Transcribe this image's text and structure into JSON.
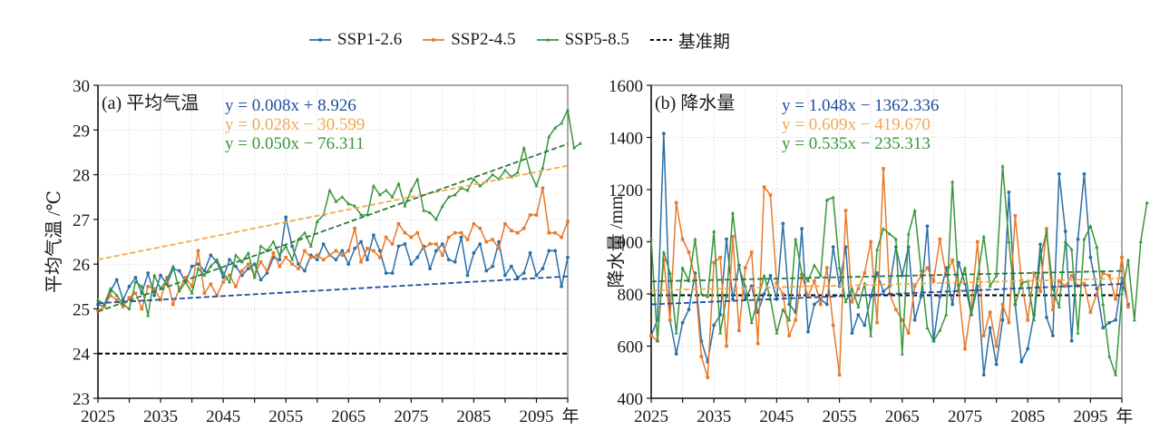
{
  "legend": {
    "items": [
      {
        "label": "SSP1-2.6",
        "color": "#2a6fa8",
        "marker": "circle"
      },
      {
        "label": "SSP2-4.5",
        "color": "#e87a2a",
        "marker": "square"
      },
      {
        "label": "SSP5-8.5",
        "color": "#38963a",
        "marker": "triangle"
      },
      {
        "label": "基准期",
        "color": "#000000",
        "marker": "dashed"
      }
    ]
  },
  "chart_data": [
    {
      "type": "line",
      "title": "(a) 平均气温",
      "xlabel": "年",
      "ylabel": "平均气温 /℃",
      "xlim": [
        2025,
        2100
      ],
      "ylim": [
        23,
        30
      ],
      "xticks": [
        2025,
        2035,
        2045,
        2055,
        2065,
        2075,
        2085,
        2095
      ],
      "xtick_labels": [
        "2025",
        "2035",
        "2045",
        "2055",
        "2065",
        "2075",
        "2085",
        "2095"
      ],
      "yticks": [
        23,
        24,
        25,
        26,
        27,
        28,
        29,
        30
      ],
      "ytick_labels": [
        "23",
        "24",
        "25",
        "26",
        "27",
        "28",
        "29",
        "30"
      ],
      "grid": true,
      "baseline": {
        "name": "基准期",
        "value": 24.0,
        "color": "#000000"
      },
      "equations": [
        {
          "text": "y = 0.008x + 8.926",
          "color": "#1f4e9c"
        },
        {
          "text": "y = 0.028x − 30.599",
          "color": "#f0a94e"
        },
        {
          "text": "y = 0.050x − 76.311",
          "color": "#38963a"
        }
      ],
      "x_start": 2025,
      "series": [
        {
          "name": "SSP1-2.6",
          "color": "#2a6fa8",
          "trend_color": "#1f4e9c",
          "trend": [
            0.008,
            8.926
          ],
          "values": [
            25.1,
            25.05,
            25.4,
            25.65,
            25.2,
            25.5,
            25.7,
            25.35,
            25.8,
            25.3,
            25.75,
            25.55,
            25.9,
            25.85,
            25.6,
            25.95,
            26.0,
            25.85,
            26.2,
            26.05,
            25.7,
            26.1,
            25.95,
            25.75,
            25.9,
            26.0,
            25.65,
            25.8,
            26.15,
            26.1,
            27.05,
            26.4,
            26.0,
            25.85,
            26.2,
            26.1,
            26.45,
            26.2,
            26.1,
            26.3,
            26.0,
            26.35,
            26.5,
            26.1,
            26.65,
            26.3,
            25.8,
            25.8,
            26.4,
            26.45,
            26.0,
            26.15,
            26.4,
            25.9,
            26.3,
            26.45,
            26.1,
            26.05,
            26.6,
            25.75,
            26.25,
            26.45,
            25.85,
            25.95,
            26.5,
            25.75,
            25.95,
            25.7,
            25.8,
            26.25,
            25.75,
            25.9,
            26.3,
            26.3,
            25.5,
            26.15
          ]
        },
        {
          "name": "SSP2-4.5",
          "color": "#e87a2a",
          "trend_color": "#f0a94e",
          "trend": [
            0.028,
            -30.599
          ],
          "values": [
            24.95,
            25.05,
            25.3,
            25.2,
            25.05,
            25.25,
            25.35,
            25.0,
            25.5,
            25.45,
            25.2,
            25.7,
            25.1,
            25.45,
            25.7,
            25.5,
            26.3,
            25.35,
            25.55,
            25.3,
            25.6,
            25.75,
            25.5,
            25.85,
            26.0,
            25.75,
            26.05,
            25.85,
            26.25,
            25.95,
            26.15,
            26.0,
            25.9,
            26.3,
            26.15,
            26.2,
            26.1,
            26.2,
            26.3,
            26.2,
            26.3,
            26.8,
            26.05,
            26.35,
            26.3,
            26.15,
            26.6,
            26.45,
            26.9,
            26.7,
            26.6,
            26.7,
            26.35,
            26.45,
            26.45,
            26.2,
            26.6,
            26.7,
            26.7,
            26.55,
            26.9,
            26.8,
            26.5,
            26.55,
            26.35,
            26.9,
            26.75,
            26.7,
            26.8,
            27.1,
            27.1,
            27.7,
            26.7,
            26.7,
            26.6,
            26.95
          ]
        },
        {
          "name": "SSP5-8.5",
          "color": "#38963a",
          "trend_color": "#2a7a3a",
          "trend": [
            0.05,
            -76.311
          ],
          "values": [
            25.2,
            25.1,
            25.45,
            25.3,
            25.1,
            25.0,
            25.6,
            25.5,
            24.85,
            25.75,
            25.45,
            25.65,
            25.95,
            25.4,
            25.6,
            25.35,
            25.9,
            25.75,
            25.95,
            26.1,
            25.8,
            25.6,
            26.2,
            26.05,
            26.25,
            25.7,
            26.4,
            26.3,
            26.5,
            26.2,
            26.4,
            26.1,
            26.55,
            26.7,
            26.4,
            26.95,
            27.1,
            27.65,
            27.4,
            27.5,
            27.35,
            27.3,
            27.1,
            27.1,
            27.75,
            27.55,
            27.65,
            27.5,
            27.8,
            27.3,
            27.65,
            27.9,
            27.2,
            27.15,
            27.0,
            27.3,
            27.5,
            27.55,
            27.7,
            27.65,
            27.9,
            27.75,
            27.85,
            28.0,
            27.9,
            28.1,
            27.95,
            28.05,
            28.6,
            28.05,
            27.75,
            28.15,
            28.85,
            29.05,
            29.15,
            29.45,
            28.6,
            28.7
          ]
        }
      ]
    },
    {
      "type": "line",
      "title": "(b) 降水量",
      "xlabel": "年",
      "ylabel": "降水量 /mm",
      "xlim": [
        2025,
        2100
      ],
      "ylim": [
        400,
        1600
      ],
      "xticks": [
        2025,
        2035,
        2045,
        2055,
        2065,
        2075,
        2085,
        2095
      ],
      "xtick_labels": [
        "2025",
        "2035",
        "2045",
        "2055",
        "2065",
        "2075",
        "2085",
        "2095"
      ],
      "yticks": [
        400,
        600,
        800,
        1000,
        1200,
        1400,
        1600
      ],
      "ytick_labels": [
        "400",
        "600",
        "800",
        "1000",
        "1200",
        "1400",
        "1600"
      ],
      "grid": true,
      "baseline": {
        "name": "基准期",
        "value": 795,
        "color": "#000000"
      },
      "equations": [
        {
          "text": "y = 1.048x − 1362.336",
          "color": "#1f4e9c"
        },
        {
          "text": "y = 0.609x − 419.670",
          "color": "#f0a94e"
        },
        {
          "text": "y = 0.535x − 235.313",
          "color": "#38963a"
        }
      ],
      "x_start": 2025,
      "series": [
        {
          "name": "SSP1-2.6",
          "color": "#2a6fa8",
          "trend_color": "#1f4e9c",
          "trend": [
            1.048,
            -1362.336
          ],
          "values": [
            640,
            700,
            1415,
            700,
            570,
            690,
            740,
            880,
            620,
            540,
            680,
            720,
            1010,
            780,
            910,
            780,
            830,
            730,
            800,
            870,
            780,
            1070,
            760,
            730,
            1050,
            655,
            760,
            780,
            760,
            980,
            830,
            980,
            650,
            720,
            680,
            790,
            880,
            810,
            830,
            980,
            870,
            980,
            700,
            790,
            1060,
            620,
            790,
            900,
            760,
            920,
            840,
            720,
            830,
            490,
            670,
            530,
            700,
            1190,
            760,
            540,
            590,
            720,
            990,
            710,
            640,
            1260,
            1040,
            620,
            1010,
            1260,
            940,
            820,
            670,
            690,
            700,
            860,
            760
          ]
        },
        {
          "name": "SSP2-4.5",
          "color": "#e87a2a",
          "trend_color": "#f0a94e",
          "trend": [
            0.609,
            -419.67
          ],
          "values": [
            640,
            620,
            930,
            700,
            1150,
            1010,
            960,
            860,
            560,
            480,
            920,
            940,
            600,
            1020,
            660,
            900,
            960,
            610,
            1210,
            1180,
            840,
            800,
            640,
            700,
            870,
            790,
            850,
            760,
            900,
            680,
            490,
            1120,
            770,
            820,
            880,
            1000,
            690,
            1280,
            800,
            740,
            700,
            650,
            830,
            870,
            900,
            850,
            1010,
            870,
            930,
            810,
            590,
            750,
            1000,
            640,
            730,
            600,
            760,
            690,
            1100,
            850,
            700,
            880,
            810,
            1050,
            740,
            850,
            830,
            870,
            830,
            840,
            730,
            800,
            880,
            870,
            780,
            940,
            750
          ]
        },
        {
          "name": "SSP5-8.5",
          "color": "#38963a",
          "trend_color": "#2a7a3a",
          "trend": [
            0.535,
            -235.313
          ],
          "values": [
            1010,
            620,
            960,
            880,
            650,
            900,
            850,
            1010,
            800,
            790,
            1040,
            650,
            790,
            1110,
            900,
            830,
            690,
            780,
            870,
            780,
            650,
            740,
            700,
            1010,
            880,
            850,
            910,
            870,
            1160,
            1170,
            900,
            770,
            820,
            750,
            840,
            640,
            970,
            1050,
            1030,
            1010,
            570,
            1030,
            1120,
            890,
            670,
            620,
            660,
            720,
            1230,
            820,
            900,
            720,
            860,
            1020,
            830,
            870,
            1290,
            1000,
            760,
            840,
            850,
            700,
            940,
            1040,
            820,
            750,
            1000,
            970,
            650,
            1010,
            1060,
            980,
            760,
            560,
            490,
            800,
            930,
            700,
            1000,
            1150
          ]
        }
      ]
    }
  ]
}
